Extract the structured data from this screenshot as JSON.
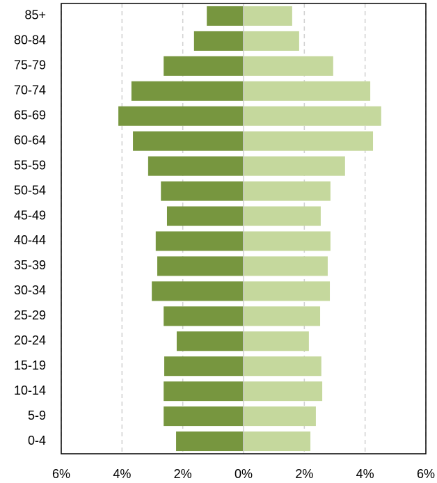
{
  "chart_data": {
    "type": "bar",
    "orientation": "horizontal",
    "stacked": false,
    "categories": [
      "85+",
      "80-84",
      "75-79",
      "70-74",
      "65-69",
      "60-64",
      "55-59",
      "50-54",
      "45-49",
      "40-44",
      "35-39",
      "30-34",
      "25-29",
      "20-24",
      "15-19",
      "10-14",
      "5-9",
      "0-4"
    ],
    "series": [
      {
        "color": "#77963f",
        "values": [
          -1.21,
          -1.63,
          -2.63,
          -3.69,
          -4.12,
          -3.64,
          -3.14,
          -2.72,
          -2.52,
          -2.89,
          -2.84,
          -3.02,
          -2.63,
          -2.2,
          -2.61,
          -2.63,
          -2.63,
          -2.22
        ]
      },
      {
        "color": "#c5d89d",
        "values": [
          1.6,
          1.83,
          2.95,
          4.17,
          4.53,
          4.26,
          3.34,
          2.86,
          2.54,
          2.86,
          2.77,
          2.84,
          2.52,
          2.15,
          2.56,
          2.59,
          2.38,
          2.2
        ]
      }
    ],
    "xlim": [
      -6,
      6
    ],
    "xticks": [
      {
        "value": -6,
        "label": "6%"
      },
      {
        "value": -4,
        "label": "4%"
      },
      {
        "value": -2,
        "label": "2%"
      },
      {
        "value": 0,
        "label": "0%"
      },
      {
        "value": 2,
        "label": "2%"
      },
      {
        "value": 4,
        "label": "4%"
      },
      {
        "value": 6,
        "label": "6%"
      }
    ],
    "grid": true
  }
}
